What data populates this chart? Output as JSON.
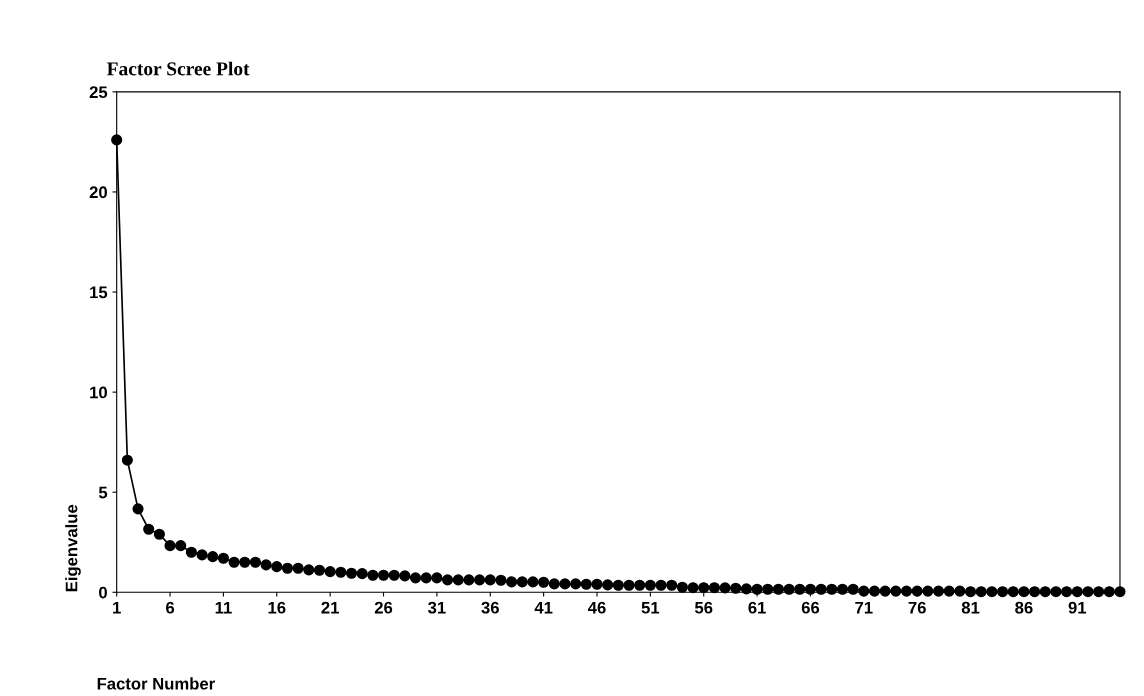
{
  "chart_data": {
    "type": "line",
    "title": "Factor Scree Plot",
    "xlabel": "Factor Number",
    "ylabel": "Eigenvalue",
    "categories": [
      "1",
      null,
      null,
      null,
      null,
      "6",
      null,
      null,
      null,
      null,
      "11",
      null,
      null,
      null,
      null,
      "16",
      null,
      null,
      null,
      null,
      "21",
      null,
      null,
      null,
      null,
      "26",
      null,
      null,
      null,
      null,
      "31",
      null,
      null,
      null,
      null,
      "36",
      null,
      null,
      null,
      null,
      "41",
      null,
      null,
      null,
      null,
      "46",
      null,
      null,
      null,
      null,
      "51",
      null,
      null,
      null,
      null,
      "56",
      null,
      null,
      null,
      null,
      "61",
      null,
      null,
      null,
      null,
      "66",
      null,
      null,
      null,
      null,
      "71",
      null,
      null,
      null,
      null,
      "76",
      null,
      null,
      null,
      null,
      "81",
      null,
      null,
      null,
      null,
      "86",
      null,
      null,
      null,
      null,
      "91",
      null,
      null,
      null,
      null
    ],
    "series": [
      {
        "color": "#000000",
        "values": [
          22.6,
          6.6,
          4.17,
          3.15,
          2.9,
          2.33,
          2.33,
          2.0,
          1.87,
          1.78,
          1.7,
          1.5,
          1.5,
          1.5,
          1.37,
          1.28,
          1.2,
          1.2,
          1.12,
          1.1,
          1.03,
          1.0,
          0.95,
          0.93,
          0.85,
          0.85,
          0.85,
          0.82,
          0.72,
          0.72,
          0.72,
          0.62,
          0.62,
          0.62,
          0.62,
          0.62,
          0.6,
          0.52,
          0.52,
          0.52,
          0.5,
          0.42,
          0.42,
          0.42,
          0.4,
          0.4,
          0.37,
          0.35,
          0.35,
          0.35,
          0.35,
          0.35,
          0.35,
          0.25,
          0.23,
          0.23,
          0.23,
          0.22,
          0.2,
          0.17,
          0.15,
          0.15,
          0.15,
          0.15,
          0.15,
          0.15,
          0.15,
          0.15,
          0.15,
          0.15,
          0.06,
          0.06,
          0.06,
          0.06,
          0.06,
          0.06,
          0.06,
          0.06,
          0.06,
          0.06,
          0.03,
          0.03,
          0.03,
          0.03,
          0.03,
          0.03,
          0.03,
          0.03,
          0.03,
          0.03,
          0.03,
          0.03,
          0.03,
          0.03,
          0.03
        ]
      }
    ],
    "ylim": [
      0,
      25
    ],
    "yticks": [
      0,
      5,
      10,
      15,
      20,
      25
    ],
    "grid": false,
    "marker": "circle",
    "line_style": "solid"
  }
}
